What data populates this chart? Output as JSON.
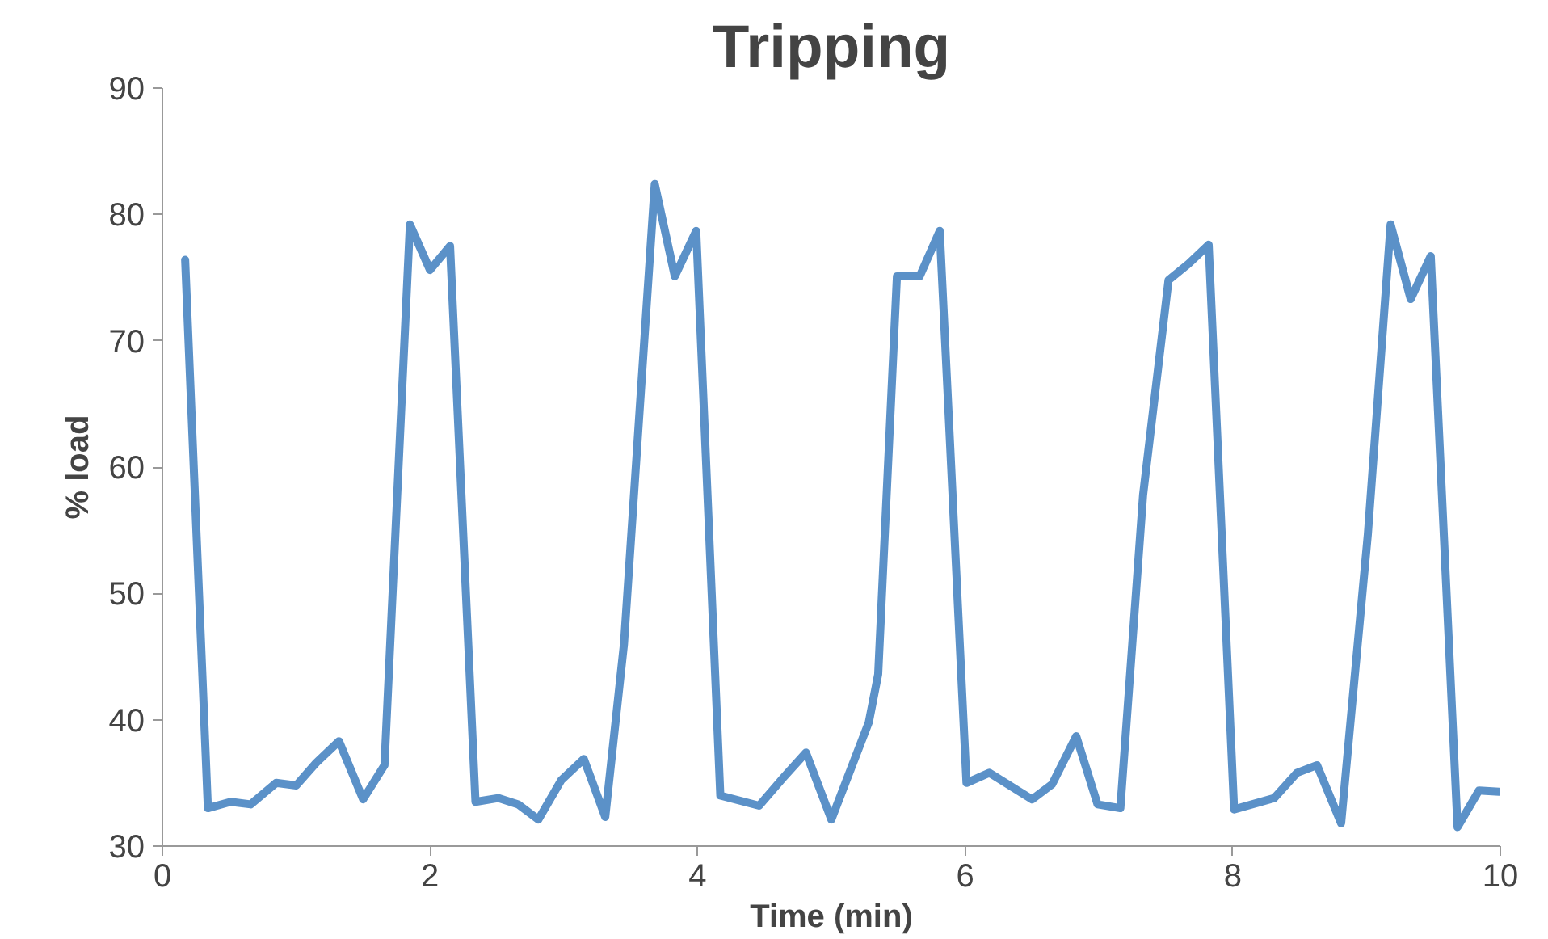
{
  "chart_data": {
    "type": "line",
    "title": "Tripping",
    "xlabel": "Time (min)",
    "ylabel": "% load",
    "xlim": [
      0,
      10
    ],
    "xticks": [
      0,
      2,
      4,
      6,
      8,
      10
    ],
    "ylim": [
      30,
      90
    ],
    "yticks": [
      30,
      40,
      50,
      60,
      70,
      80,
      90
    ],
    "line_style": "solid",
    "series": [
      {
        "color": "#5b91c8",
        "x": [
          0.17,
          0.34,
          0.51,
          0.66,
          0.85,
          1.0,
          1.15,
          1.32,
          1.5,
          1.66,
          1.85,
          2.0,
          2.15,
          2.34,
          2.51,
          2.66,
          2.81,
          2.98,
          3.15,
          3.31,
          3.45,
          3.68,
          3.83,
          3.99,
          4.17,
          4.46,
          4.64,
          4.81,
          5.0,
          5.28,
          5.35,
          5.49,
          5.66,
          5.81,
          6.01,
          6.18,
          6.5,
          6.65,
          6.83,
          6.99,
          7.16,
          7.33,
          7.52,
          7.67,
          7.82,
          8.01,
          8.31,
          8.48,
          8.63,
          8.81,
          9.01,
          9.18,
          9.33,
          9.48,
          9.68,
          9.84,
          9.99
        ],
        "values": [
          76.4,
          33.0,
          33.5,
          33.3,
          35.0,
          34.8,
          36.6,
          38.3,
          33.7,
          36.4,
          79.2,
          75.6,
          77.5,
          33.5,
          33.8,
          33.3,
          32.1,
          35.2,
          36.9,
          32.3,
          46.0,
          82.4,
          75.1,
          78.7,
          34.0,
          33.2,
          35.4,
          37.4,
          32.1,
          39.8,
          43.6,
          75.1,
          75.1,
          78.7,
          35.0,
          35.8,
          33.7,
          34.9,
          38.7,
          33.3,
          33.0,
          57.8,
          74.8,
          76.1,
          77.6,
          32.9,
          33.8,
          35.8,
          36.4,
          31.8,
          54.7,
          79.2,
          73.3,
          76.7,
          31.5,
          34.4,
          34.3
        ]
      }
    ]
  }
}
